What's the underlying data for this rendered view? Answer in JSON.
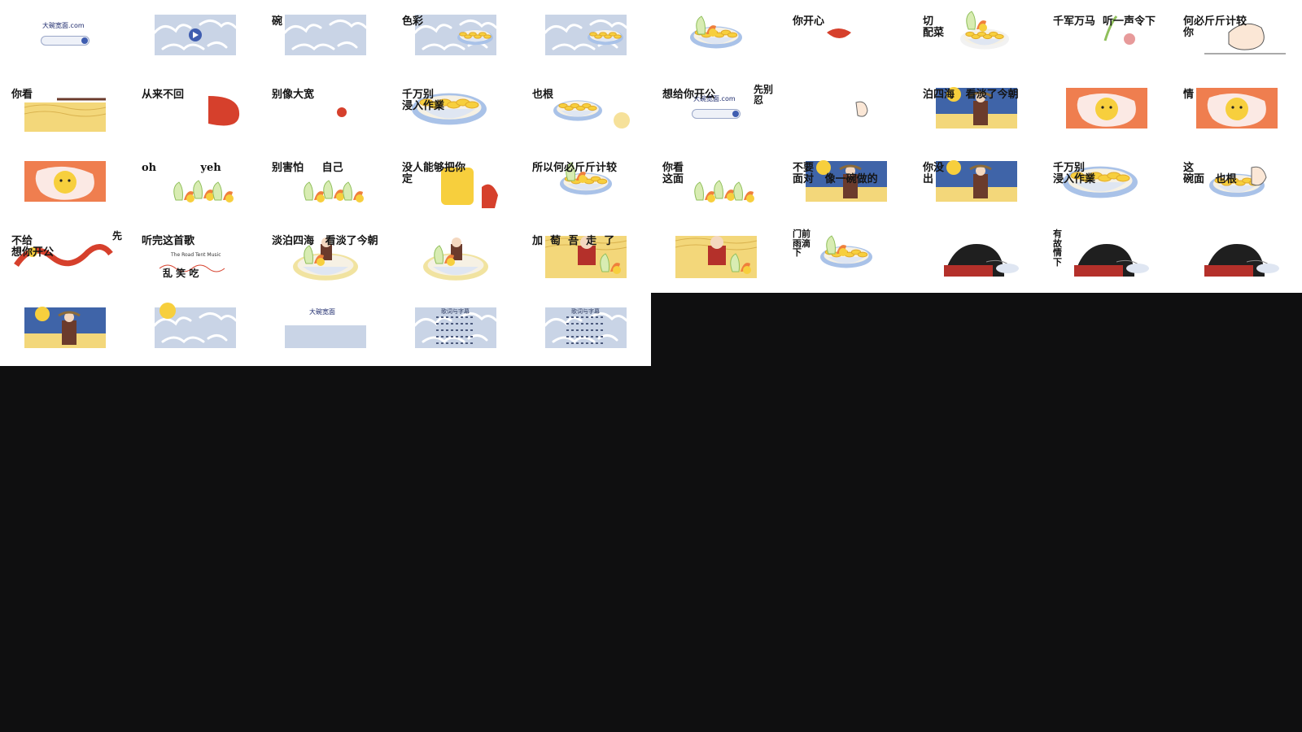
{
  "colors": {
    "background": "#0f0f10",
    "sheet": "#ffffff",
    "cloud": "#c9d4e6",
    "cloud_line": "#ffffff",
    "sky": "#3f64a8",
    "sand": "#f3d77a",
    "yolk": "#f7cf3d",
    "red": "#d6402c",
    "ink": "#151515"
  },
  "grid": {
    "top_rows": 4,
    "top_cols": 10,
    "bottom_cols": 5
  },
  "frames": [
    {
      "kind": "search",
      "site": "大碗宽面.com",
      "icon": "search-icon"
    },
    {
      "kind": "cloud-play",
      "icon": "play-icon"
    },
    {
      "kind": "cloud",
      "caption": "碗"
    },
    {
      "kind": "cloud-bowl",
      "caption": "色彩"
    },
    {
      "kind": "cloud-bowl",
      "caption": ""
    },
    {
      "kind": "bowl-veg",
      "caption": ""
    },
    {
      "kind": "lips",
      "caption": "你开心"
    },
    {
      "kind": "bowl-sketch",
      "caption": "切\n配菜"
    },
    {
      "kind": "ginger",
      "caption": "千军万马  听一声令下"
    },
    {
      "kind": "hand-line",
      "caption": "何必斤斤计较\n你"
    },
    {
      "kind": "noodle-desk",
      "caption": "你看"
    },
    {
      "kind": "sausage",
      "caption": "从来不回"
    },
    {
      "kind": "egg",
      "caption": "别像大宽"
    },
    {
      "kind": "bowl-big",
      "caption": "千万别\n浸入作業"
    },
    {
      "kind": "bowl-tilt",
      "caption": "也根"
    },
    {
      "kind": "search",
      "site": "大碗宽面.com",
      "caption": "想给你开公",
      "caption2": "先别\n忍",
      "icon": "search-icon"
    },
    {
      "kind": "finger",
      "caption": ""
    },
    {
      "kind": "scene",
      "caption": "泊四海   看淡了今朝"
    },
    {
      "kind": "egg-orange",
      "caption": ""
    },
    {
      "kind": "egg-orange",
      "caption": "情"
    },
    {
      "kind": "egg-orange",
      "caption": ""
    },
    {
      "kind": "veg-row",
      "caption": "oh            yeh"
    },
    {
      "kind": "veg-row",
      "caption": "别害怕     自己"
    },
    {
      "kind": "tofu",
      "caption": "没人能够把你\n定"
    },
    {
      "kind": "bowl-veg",
      "caption": "所以何必斤斤计较"
    },
    {
      "kind": "veg-row",
      "caption": "你看\n这面"
    },
    {
      "kind": "scene",
      "caption": "不要\n面对   像一碗做的"
    },
    {
      "kind": "scene",
      "caption": "你没\n出"
    },
    {
      "kind": "bowl-big",
      "caption": "千万别\n浸入作業"
    },
    {
      "kind": "bowl-hand",
      "caption": "这\n碗面   也根"
    },
    {
      "kind": "dragon",
      "caption": "不给\n想你开公",
      "caption2": "先"
    },
    {
      "kind": "title-card",
      "caption": "听完这首歌",
      "subtitle": "The Road Tent Music",
      "caption2": "乱 笑 吃"
    },
    {
      "kind": "bowl-boy",
      "caption": "淡泊四海   看淡了今朝"
    },
    {
      "kind": "bowl-boy",
      "caption": ""
    },
    {
      "kind": "sand-boy",
      "caption": "加  萄  吾  走  了"
    },
    {
      "kind": "sand-boy",
      "caption": ""
    },
    {
      "kind": "bowl-veg",
      "caption": "门前\n雨滴\n下"
    },
    {
      "kind": "girl",
      "caption": ""
    },
    {
      "kind": "girl",
      "caption": "有\n故\n情\n下"
    },
    {
      "kind": "girl",
      "caption": ""
    },
    {
      "kind": "scene",
      "caption": ""
    },
    {
      "kind": "cloud-sun",
      "caption": ""
    },
    {
      "kind": "cloud-logo",
      "site": "大碗宽面"
    },
    {
      "kind": "cloud-lyrics",
      "title": "歌词与字幕"
    },
    {
      "kind": "cloud-lyrics",
      "title": "歌词与字幕"
    }
  ]
}
